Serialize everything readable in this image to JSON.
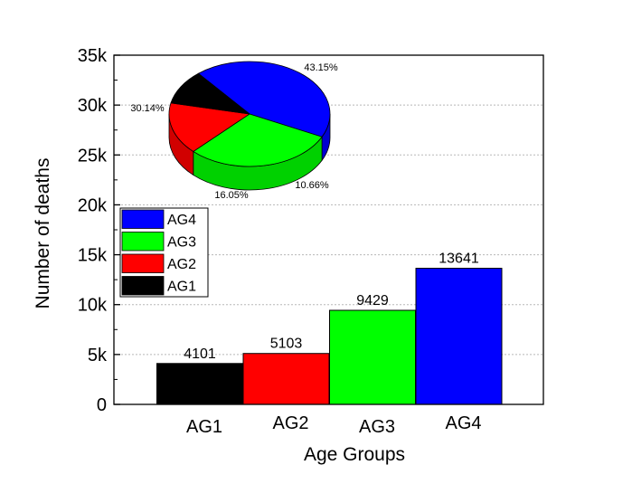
{
  "chart_data": [
    {
      "type": "bar",
      "categories": [
        "AG1",
        "AG2",
        "AG3",
        "AG4"
      ],
      "values": [
        4101,
        5103,
        9429,
        13641
      ],
      "colors": [
        "#000000",
        "#ff0000",
        "#00ff00",
        "#0000ff"
      ],
      "data_labels": [
        "4101",
        "5103",
        "9429",
        "13641"
      ],
      "title": "",
      "xlabel": "Age Groups",
      "ylabel": "Number of deaths",
      "ylim": [
        0,
        35000
      ],
      "yticks": [
        0,
        5000,
        10000,
        15000,
        20000,
        25000,
        30000,
        35000
      ],
      "ytick_labels": [
        "0",
        "5k",
        "10k",
        "15k",
        "20k",
        "25k",
        "30k",
        "35k"
      ],
      "grid": "horizontal dotted",
      "legend": {
        "placement": "left-middle",
        "entries": [
          {
            "label": "AG4",
            "color": "#0000ff"
          },
          {
            "label": "AG3",
            "color": "#00ff00"
          },
          {
            "label": "AG2",
            "color": "#ff0000"
          },
          {
            "label": "AG1",
            "color": "#000000"
          }
        ]
      }
    },
    {
      "type": "pie",
      "style": "3d",
      "categories": [
        "AG4",
        "AG3",
        "AG2",
        "AG1"
      ],
      "values": [
        43.15,
        30.14,
        16.05,
        10.66
      ],
      "labels": [
        "43.15%",
        "30.14%",
        "16.05%",
        "10.66%"
      ],
      "colors": [
        "#0000ff",
        "#00ff00",
        "#ff0000",
        "#000000"
      ]
    }
  ]
}
